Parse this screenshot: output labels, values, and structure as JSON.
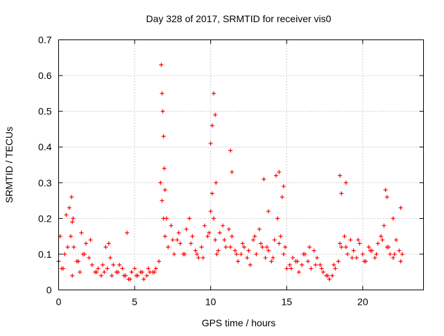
{
  "chart_data": {
    "type": "scatter",
    "title": "Day 328 of 2017, SRMTID for receiver vis0",
    "xlabel": "GPS time / hours",
    "ylabel": "SRMTID / TECUs",
    "xlim": [
      0,
      24
    ],
    "ylim": [
      0,
      0.7
    ],
    "xticks": [
      0,
      5,
      10,
      15,
      20
    ],
    "yticks": [
      0,
      0.1,
      0.2,
      0.3,
      0.4,
      0.5,
      0.6,
      0.7
    ],
    "xtick_labels": [
      "0",
      "5",
      "10",
      "15",
      "20"
    ],
    "ytick_labels": [
      "0",
      "0.1",
      "0.2",
      "0.3",
      "0.4",
      "0.5",
      "0.6",
      "0.7"
    ],
    "grid": true,
    "marker": "+",
    "color": "#ff0000",
    "series": [
      {
        "name": "SRMTID",
        "x": [
          0.0,
          0.2,
          0.4,
          0.6,
          0.8,
          0.9,
          1.0,
          1.2,
          1.4,
          1.6,
          1.8,
          2.0,
          2.2,
          2.4,
          2.6,
          2.8,
          3.0,
          3.2,
          3.4,
          3.6,
          3.8,
          4.0,
          4.2,
          4.4,
          4.6,
          4.8,
          5.0,
          5.2,
          5.4,
          5.6,
          5.8,
          6.0,
          6.2,
          6.4,
          6.6,
          6.7,
          6.8,
          6.9,
          7.0,
          7.2,
          7.4,
          7.6,
          7.8,
          8.0,
          8.2,
          8.4,
          8.6,
          8.8,
          9.0,
          9.2,
          9.4,
          9.6,
          9.8,
          10.0,
          10.1,
          10.2,
          10.3,
          10.4,
          10.6,
          10.8,
          11.0,
          11.2,
          11.4,
          11.6,
          11.8,
          12.0,
          12.2,
          12.4,
          12.6,
          12.8,
          13.0,
          13.2,
          13.4,
          13.6,
          13.8,
          14.0,
          14.2,
          14.4,
          14.6,
          14.8,
          15.0,
          15.2,
          15.4,
          15.6,
          15.8,
          16.0,
          16.2,
          16.4,
          16.6,
          16.8,
          17.0,
          17.2,
          17.4,
          17.6,
          17.8,
          18.0,
          18.2,
          18.4,
          18.6,
          18.8,
          19.0,
          19.2,
          19.4,
          19.6,
          19.8,
          20.0,
          20.2,
          20.4,
          20.6,
          20.8,
          21.0,
          21.2,
          21.4,
          21.6,
          21.8,
          22.0,
          22.2,
          22.4,
          22.6,
          0.1,
          0.5,
          0.7,
          0.85,
          0.95,
          1.5,
          2.1,
          3.1,
          3.3,
          4.5,
          6.75,
          6.8,
          6.85,
          6.9,
          6.95,
          7.0,
          10.0,
          10.1,
          10.2,
          10.3,
          10.35,
          11.3,
          11.4,
          13.5,
          13.8,
          14.3,
          14.5,
          14.7,
          14.8,
          18.5,
          18.6,
          18.9,
          21.5,
          21.6,
          22.0,
          22.5,
          0.3,
          0.9,
          1.3,
          1.7,
          2.5,
          2.9,
          3.5,
          3.9,
          4.3,
          4.7,
          5.1,
          5.5,
          5.9,
          6.3,
          7.1,
          7.5,
          7.9,
          8.3,
          8.7,
          9.1,
          9.5,
          9.9,
          10.5,
          10.9,
          11.3,
          11.7,
          12.1,
          12.5,
          12.9,
          13.3,
          13.7,
          14.1,
          14.5,
          14.9,
          15.3,
          15.7,
          16.1,
          16.5,
          16.9,
          17.3,
          17.7,
          18.1,
          18.5,
          18.9,
          19.3,
          19.7,
          20.1,
          20.5,
          20.9,
          21.3,
          21.7,
          22.1,
          22.5
        ],
        "y": [
          0.08,
          0.06,
          0.1,
          0.12,
          0.15,
          0.19,
          0.12,
          0.08,
          0.05,
          0.1,
          0.13,
          0.09,
          0.07,
          0.05,
          0.06,
          0.04,
          0.05,
          0.06,
          0.09,
          0.07,
          0.05,
          0.07,
          0.06,
          0.04,
          0.03,
          0.05,
          0.06,
          0.04,
          0.05,
          0.03,
          0.04,
          0.05,
          0.05,
          0.06,
          0.08,
          0.3,
          0.25,
          0.2,
          0.15,
          0.12,
          0.18,
          0.1,
          0.14,
          0.13,
          0.1,
          0.17,
          0.2,
          0.15,
          0.11,
          0.09,
          0.12,
          0.18,
          0.15,
          0.22,
          0.27,
          0.2,
          0.14,
          0.1,
          0.16,
          0.18,
          0.12,
          0.17,
          0.15,
          0.11,
          0.08,
          0.1,
          0.12,
          0.09,
          0.07,
          0.14,
          0.1,
          0.17,
          0.12,
          0.09,
          0.11,
          0.08,
          0.14,
          0.2,
          0.15,
          0.1,
          0.06,
          0.07,
          0.09,
          0.08,
          0.05,
          0.07,
          0.1,
          0.08,
          0.06,
          0.11,
          0.09,
          0.07,
          0.05,
          0.04,
          0.03,
          0.04,
          0.06,
          0.08,
          0.12,
          0.15,
          0.1,
          0.14,
          0.11,
          0.09,
          0.13,
          0.1,
          0.08,
          0.12,
          0.11,
          0.09,
          0.13,
          0.15,
          0.18,
          0.12,
          0.1,
          0.09,
          0.14,
          0.11,
          0.1,
          0.15,
          0.21,
          0.23,
          0.26,
          0.2,
          0.16,
          0.14,
          0.12,
          0.13,
          0.16,
          0.63,
          0.55,
          0.5,
          0.43,
          0.34,
          0.28,
          0.41,
          0.46,
          0.55,
          0.49,
          0.3,
          0.39,
          0.33,
          0.31,
          0.22,
          0.32,
          0.33,
          0.26,
          0.29,
          0.32,
          0.27,
          0.3,
          0.28,
          0.26,
          0.2,
          0.23,
          0.06,
          0.04,
          0.08,
          0.1,
          0.05,
          0.07,
          0.04,
          0.05,
          0.04,
          0.03,
          0.04,
          0.05,
          0.06,
          0.05,
          0.2,
          0.14,
          0.16,
          0.1,
          0.13,
          0.1,
          0.09,
          0.16,
          0.11,
          0.14,
          0.12,
          0.1,
          0.13,
          0.11,
          0.15,
          0.13,
          0.12,
          0.09,
          0.13,
          0.12,
          0.06,
          0.08,
          0.1,
          0.12,
          0.07,
          0.06,
          0.04,
          0.07,
          0.13,
          0.12,
          0.09,
          0.14,
          0.08,
          0.11,
          0.1,
          0.14,
          0.12,
          0.1,
          0.08
        ]
      }
    ]
  }
}
